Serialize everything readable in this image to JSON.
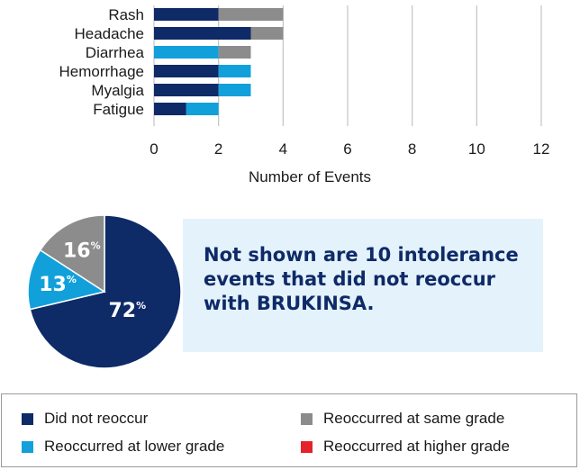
{
  "chart_data": [
    {
      "type": "bar",
      "orientation": "horizontal",
      "stacked": true,
      "categories": [
        "Rash",
        "Headache",
        "Diarrhea",
        "Hemorrhage",
        "Myalgia",
        "Fatigue"
      ],
      "series": [
        {
          "name": "Did not reoccur",
          "values": [
            2,
            3,
            0,
            2,
            2,
            1
          ]
        },
        {
          "name": "Reoccurred at lower grade",
          "values": [
            0,
            0,
            2,
            1,
            1,
            1
          ]
        },
        {
          "name": "Reoccurred at same grade",
          "values": [
            2,
            1,
            1,
            0,
            0,
            0
          ]
        },
        {
          "name": "Reoccurred at higher grade",
          "values": [
            0,
            0,
            0,
            0,
            0,
            0
          ]
        }
      ],
      "xlabel": "Number of Events",
      "ticks": [
        "0",
        "2",
        "4",
        "6",
        "8",
        "10",
        "12"
      ],
      "xlim": [
        0,
        12
      ],
      "grid": true
    },
    {
      "type": "pie",
      "slices": [
        {
          "name": "Did not reoccur",
          "value": 72,
          "label": "72"
        },
        {
          "name": "Reoccurred at lower grade",
          "value": 13,
          "label": "13"
        },
        {
          "name": "Reoccurred at same grade",
          "value": 16,
          "label": "16"
        }
      ],
      "unit": "%"
    }
  ],
  "note": {
    "lines": [
      "Not shown are 10 intolerance",
      "events that did not reoccur",
      "with BRUKINSA."
    ]
  },
  "legend": {
    "items": [
      {
        "label": "Did not reoccur",
        "color": "#0e2a67"
      },
      {
        "label": "Reoccurred at same grade",
        "color": "#8c8c8c"
      },
      {
        "label": "Reoccurred at lower grade",
        "color": "#12a0db"
      },
      {
        "label": "Reoccurred at higher grade",
        "color": "#e4222a"
      }
    ]
  },
  "colors": {
    "did_not_reoccur": "#0e2a67",
    "lower_grade": "#12a0db",
    "same_grade": "#8c8c8c",
    "higher_grade": "#e4222a",
    "note_bg": "#e4f2fb",
    "note_text": "#0e2a67",
    "grid": "#c8c8c8"
  }
}
